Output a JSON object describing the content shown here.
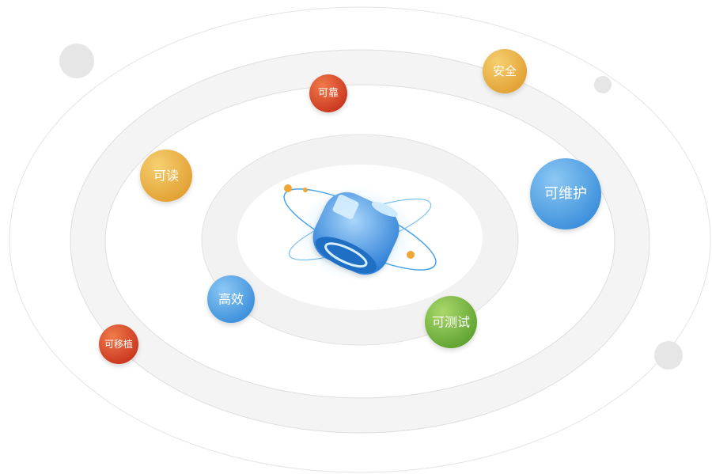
{
  "nodes": [
    {
      "label": "可靠"
    },
    {
      "label": "安全"
    },
    {
      "label": "可读"
    },
    {
      "label": "可维护"
    },
    {
      "label": "高效"
    },
    {
      "label": "可测试"
    },
    {
      "label": "可移植"
    }
  ]
}
